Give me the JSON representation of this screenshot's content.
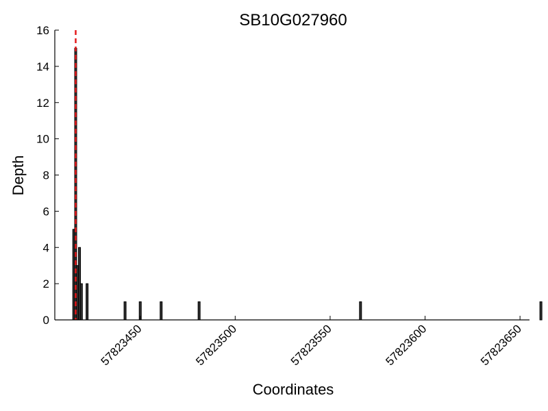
{
  "chart_data": {
    "type": "bar",
    "title": "SB10G027960",
    "xlabel": "Coordinates",
    "ylabel": "Depth",
    "xlim": [
      57823405,
      57823655
    ],
    "ylim": [
      0,
      16
    ],
    "x_ticks": [
      57823450,
      57823500,
      57823550,
      57823600,
      57823650
    ],
    "x_tick_labels": [
      "57823450",
      "57823500",
      "57823550",
      "57823600",
      "57823650"
    ],
    "y_ticks": [
      0,
      2,
      4,
      6,
      8,
      10,
      12,
      14,
      16
    ],
    "y_tick_labels": [
      "0",
      "2",
      "4",
      "6",
      "8",
      "10",
      "12",
      "14",
      "16"
    ],
    "x": [
      57823415,
      57823416,
      57823417,
      57823418,
      57823419,
      57823422,
      57823442,
      57823450,
      57823461,
      57823481,
      57823566,
      57823661
    ],
    "values": [
      5,
      15,
      3,
      4,
      2,
      2,
      1,
      1,
      1,
      1,
      1,
      1
    ],
    "bar_color": "#000000",
    "bar_fill": "#333333",
    "marker_line": {
      "x": 57823416,
      "color": "#e41a1c",
      "style": "dashed"
    },
    "grid": false
  }
}
